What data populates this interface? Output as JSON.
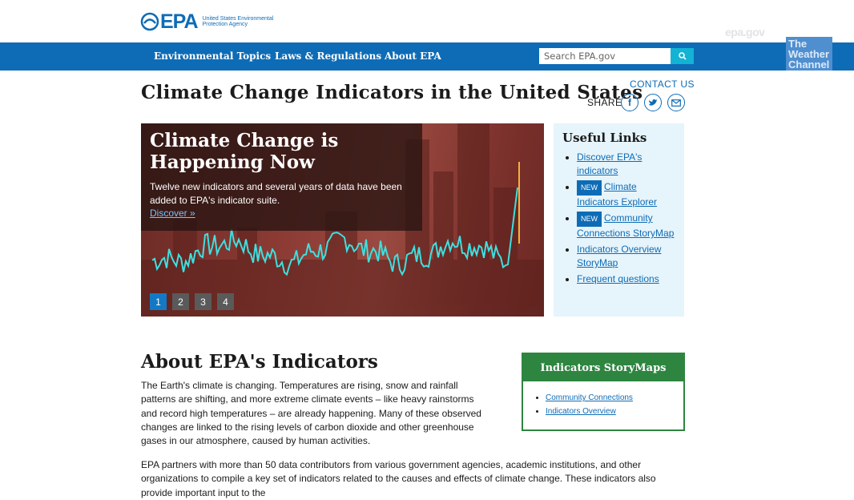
{
  "header": {
    "logo_mark": "EPA",
    "logo_text": "United States Environmental Protection Agency",
    "watermark": "epa.gov"
  },
  "nav": {
    "items": [
      {
        "label": "Environmental Topics"
      },
      {
        "label": "Laws & Regulations"
      },
      {
        "label": "About EPA"
      }
    ],
    "search_placeholder": "Search EPA.gov",
    "search_icon": "search-icon"
  },
  "sidebar_ad": {
    "label": "The Weather Channel"
  },
  "page": {
    "title": "Climate Change Indicators in the United States",
    "contact": "CONTACT US",
    "share_label": "SHARE",
    "share_icons": [
      "facebook-icon",
      "twitter-icon",
      "email-icon"
    ]
  },
  "hero": {
    "heading": "Climate Change is Happening Now",
    "text": "Twelve new indicators and several years of data have been added to EPA's indicator suite.",
    "link": "Discover »",
    "slides": [
      "1",
      "2",
      "3",
      "4"
    ],
    "active_slide": 1
  },
  "useful_links": {
    "title": "Useful Links",
    "items": [
      {
        "badge": "",
        "label": "Discover EPA's indicators"
      },
      {
        "badge": "NEW",
        "label": "Climate Indicators Explorer"
      },
      {
        "badge": "NEW",
        "label": "Community Connections StoryMap"
      },
      {
        "badge": "",
        "label": "Indicators Overview StoryMap"
      },
      {
        "badge": "",
        "label": "Frequent questions"
      }
    ]
  },
  "about": {
    "title": "About EPA's Indicators",
    "p1": "The Earth's climate is changing. Temperatures are rising, snow and rainfall patterns are shifting, and more extreme climate events – like heavy rainstorms and record high temperatures – are already happening. Many of these observed changes are linked to the rising levels of carbon dioxide and other greenhouse gases in our atmosphere, caused by human activities.",
    "p2": "EPA partners with more than 50 data contributors from various government agencies, academic institutions, and other organizations to compile a key set of indicators related to the causes and effects of climate change. These indicators also provide important input to the"
  },
  "storymaps": {
    "title": "Indicators StoryMaps",
    "items": [
      "Community Connections",
      "Indicators Overview"
    ]
  },
  "colors": {
    "nav_blue": "#0e6cb6",
    "search_button": "#13b3d4",
    "storymaps_green": "#2e8540",
    "useful_bg": "#e6f4fb",
    "chart_line": "#3de0e0"
  }
}
